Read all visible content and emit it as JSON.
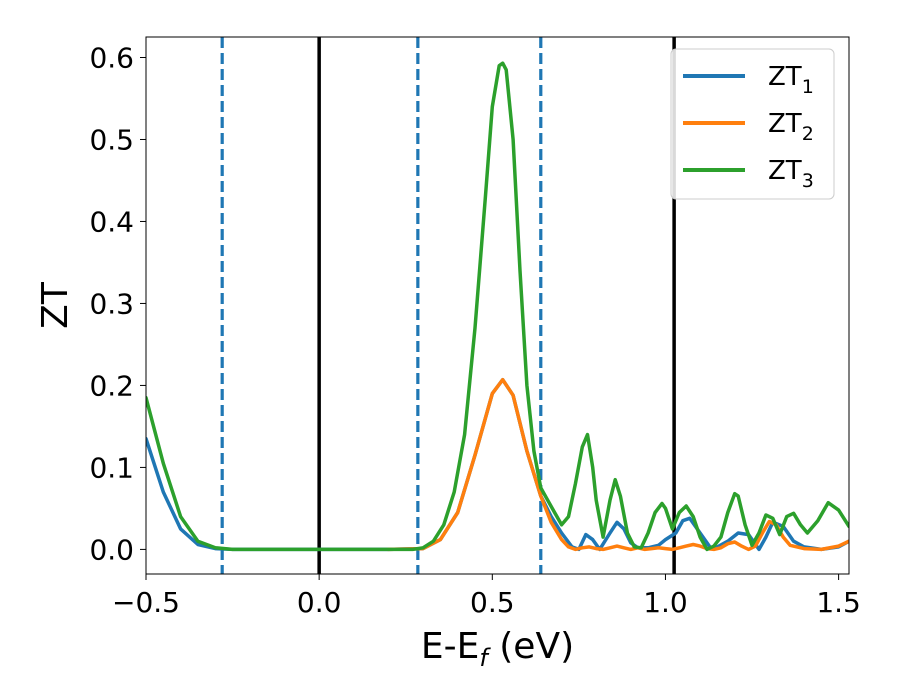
{
  "chart_data": {
    "type": "line",
    "xlabel": {
      "base": "E-E",
      "sub": "f",
      "suffix": " (eV)"
    },
    "ylabel": "ZT",
    "xlim": [
      -0.5,
      1.53
    ],
    "ylim": [
      -0.03,
      0.625
    ],
    "xticks": [
      -0.5,
      0.0,
      0.5,
      1.0,
      1.5
    ],
    "xtick_labels": [
      "−0.5",
      "0.0",
      "0.5",
      "1.0",
      "1.5"
    ],
    "yticks": [
      0.0,
      0.1,
      0.2,
      0.3,
      0.4,
      0.5,
      0.6
    ],
    "ytick_labels": [
      "0.0",
      "0.1",
      "0.2",
      "0.3",
      "0.4",
      "0.5",
      "0.6"
    ],
    "legend_position": "top-right",
    "vertical_lines": [
      {
        "x": -0.28,
        "style": "dashed",
        "color": "#1f77b4"
      },
      {
        "x": 0.0,
        "style": "solid",
        "color": "#000000"
      },
      {
        "x": 0.285,
        "style": "dashed",
        "color": "#1f77b4"
      },
      {
        "x": 0.64,
        "style": "dashed",
        "color": "#1f77b4"
      },
      {
        "x": 1.025,
        "style": "solid",
        "color": "#000000"
      }
    ],
    "series": [
      {
        "name": "ZT",
        "sub": "1",
        "color": "#1f77b4",
        "x": [
          -0.5,
          -0.45,
          -0.4,
          -0.35,
          -0.3,
          -0.25,
          -0.2,
          0.0,
          0.2,
          0.3,
          0.35,
          0.4,
          0.45,
          0.5,
          0.53,
          0.56,
          0.6,
          0.64,
          0.67,
          0.7,
          0.73,
          0.75,
          0.77,
          0.79,
          0.81,
          0.84,
          0.86,
          0.88,
          0.9,
          0.92,
          0.95,
          0.98,
          1.0,
          1.03,
          1.05,
          1.07,
          1.1,
          1.13,
          1.15,
          1.18,
          1.21,
          1.24,
          1.27,
          1.29,
          1.31,
          1.34,
          1.37,
          1.4,
          1.45,
          1.5,
          1.53
        ],
        "y": [
          0.135,
          0.07,
          0.025,
          0.006,
          0.001,
          0.0,
          0.0,
          0.0,
          0.0,
          0.001,
          0.012,
          0.045,
          0.115,
          0.19,
          0.207,
          0.188,
          0.12,
          0.065,
          0.04,
          0.02,
          0.003,
          0.0,
          0.018,
          0.012,
          0.0,
          0.02,
          0.033,
          0.025,
          0.008,
          0.002,
          0.002,
          0.005,
          0.012,
          0.02,
          0.035,
          0.038,
          0.02,
          0.002,
          0.003,
          0.01,
          0.02,
          0.018,
          0.0,
          0.015,
          0.033,
          0.028,
          0.01,
          0.003,
          0.0,
          0.003,
          0.01
        ]
      },
      {
        "name": "ZT",
        "sub": "2",
        "color": "#ff7f0e",
        "x": [
          0.2,
          0.3,
          0.35,
          0.4,
          0.45,
          0.5,
          0.53,
          0.56,
          0.6,
          0.64,
          0.67,
          0.7,
          0.72,
          0.74,
          0.76,
          0.78,
          0.8,
          0.82,
          0.84,
          0.86,
          0.88,
          0.9,
          0.92,
          0.94,
          0.96,
          0.98,
          1.0,
          1.02,
          1.04,
          1.06,
          1.08,
          1.1,
          1.12,
          1.14,
          1.16,
          1.18,
          1.2,
          1.22,
          1.24,
          1.26,
          1.28,
          1.3,
          1.32,
          1.34,
          1.36,
          1.4,
          1.45,
          1.5,
          1.53
        ],
        "y": [
          0.0,
          0.001,
          0.012,
          0.045,
          0.115,
          0.19,
          0.207,
          0.188,
          0.12,
          0.065,
          0.033,
          0.012,
          0.003,
          0.0,
          0.002,
          0.003,
          0.001,
          0.0,
          0.002,
          0.004,
          0.002,
          0.0,
          0.002,
          0.0,
          0.001,
          0.002,
          0.001,
          0.0,
          0.002,
          0.004,
          0.006,
          0.004,
          0.001,
          0.0,
          0.002,
          0.007,
          0.009,
          0.004,
          0.0,
          0.004,
          0.02,
          0.034,
          0.03,
          0.015,
          0.005,
          0.001,
          0.0,
          0.004,
          0.01
        ]
      },
      {
        "name": "ZT",
        "sub": "3",
        "color": "#2ca02c",
        "x": [
          -0.5,
          -0.45,
          -0.4,
          -0.35,
          -0.3,
          -0.25,
          -0.2,
          0.0,
          0.2,
          0.27,
          0.3,
          0.33,
          0.36,
          0.39,
          0.42,
          0.45,
          0.48,
          0.5,
          0.52,
          0.53,
          0.54,
          0.56,
          0.58,
          0.6,
          0.62,
          0.64,
          0.66,
          0.68,
          0.7,
          0.72,
          0.74,
          0.76,
          0.775,
          0.79,
          0.8,
          0.82,
          0.84,
          0.855,
          0.87,
          0.89,
          0.91,
          0.93,
          0.95,
          0.97,
          0.99,
          1.0,
          1.02,
          1.04,
          1.06,
          1.08,
          1.1,
          1.12,
          1.14,
          1.16,
          1.18,
          1.2,
          1.21,
          1.23,
          1.25,
          1.27,
          1.29,
          1.31,
          1.33,
          1.35,
          1.37,
          1.39,
          1.41,
          1.44,
          1.47,
          1.5,
          1.53
        ],
        "y": [
          0.185,
          0.105,
          0.04,
          0.01,
          0.002,
          0.0,
          0.0,
          0.0,
          0.0,
          0.0,
          0.002,
          0.01,
          0.03,
          0.07,
          0.14,
          0.27,
          0.43,
          0.54,
          0.59,
          0.593,
          0.585,
          0.5,
          0.34,
          0.2,
          0.12,
          0.075,
          0.06,
          0.045,
          0.03,
          0.04,
          0.08,
          0.125,
          0.14,
          0.1,
          0.06,
          0.015,
          0.06,
          0.085,
          0.065,
          0.02,
          0.003,
          0.002,
          0.02,
          0.045,
          0.056,
          0.05,
          0.025,
          0.045,
          0.053,
          0.04,
          0.015,
          0.0,
          0.004,
          0.015,
          0.045,
          0.068,
          0.065,
          0.03,
          0.005,
          0.02,
          0.042,
          0.038,
          0.018,
          0.04,
          0.044,
          0.03,
          0.02,
          0.035,
          0.057,
          0.048,
          0.028
        ]
      }
    ]
  }
}
